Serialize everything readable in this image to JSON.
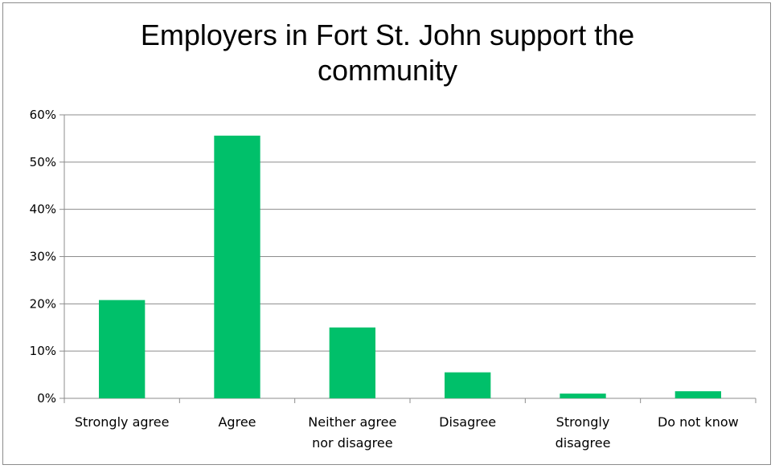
{
  "chart_data": {
    "type": "bar",
    "title": "Employers in Fort St. John support the community",
    "title_lines": [
      "Employers in Fort St. John support the",
      "community"
    ],
    "categories": [
      [
        "Strongly agree"
      ],
      [
        "Agree"
      ],
      [
        "Neither agree",
        "nor disagree"
      ],
      [
        "Disagree"
      ],
      [
        "Strongly",
        "disagree"
      ],
      [
        "Do not know"
      ]
    ],
    "values": [
      20.8,
      55.6,
      15.0,
      5.5,
      1.0,
      1.5
    ],
    "ylim": [
      0,
      60
    ],
    "yticks": [
      0,
      10,
      20,
      30,
      40,
      50,
      60
    ],
    "ytick_labels": [
      "0%",
      "10%",
      "20%",
      "30%",
      "40%",
      "50%",
      "60%"
    ],
    "xlabel": "",
    "ylabel": "",
    "grid": true,
    "legend": false,
    "colors": {
      "bar": "#00c06a",
      "grid": "#8c8c8c",
      "axis": "#8c8c8c",
      "text": "#000000"
    }
  }
}
